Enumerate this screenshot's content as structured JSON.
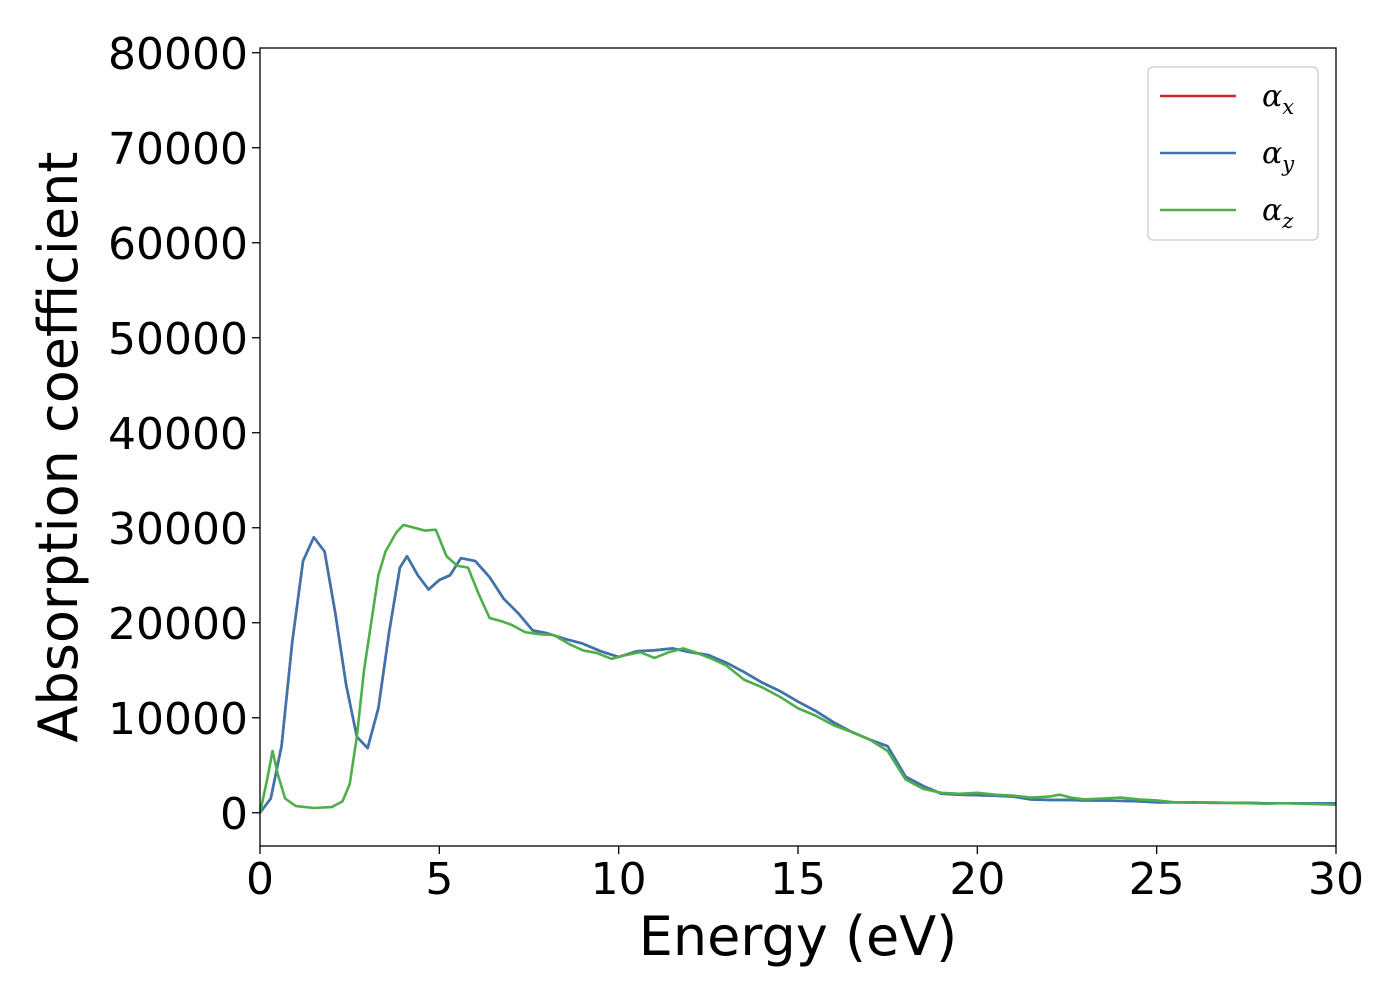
{
  "chart_data": {
    "type": "line",
    "title": "",
    "xlabel": "Energy (eV)",
    "ylabel": "Absorption coefficient",
    "xlim": [
      0,
      30
    ],
    "ylim": [
      -3500,
      80500
    ],
    "xticks": [
      0,
      5,
      10,
      15,
      20,
      25,
      30
    ],
    "yticks": [
      0,
      10000,
      20000,
      30000,
      40000,
      50000,
      60000,
      70000,
      80000
    ],
    "grid": false,
    "legend_position": "top-right",
    "legend": [
      {
        "symbol": "α",
        "sub": "x",
        "color": "#d62728"
      },
      {
        "symbol": "α",
        "sub": "y",
        "color": "#3b75af"
      },
      {
        "symbol": "α",
        "sub": "z",
        "color": "#4daf4a"
      }
    ],
    "series": [
      {
        "name": "αx",
        "color": "#d62728",
        "x": [
          0,
          0.3,
          0.6,
          0.9,
          1.2,
          1.5,
          1.8,
          2.1,
          2.4,
          2.7,
          3.0,
          3.3,
          3.6,
          3.9,
          4.1,
          4.4,
          4.7,
          5.0,
          5.3,
          5.6,
          6.0,
          6.4,
          6.8,
          7.2,
          7.6,
          8.0,
          8.5,
          9.0,
          9.5,
          10.0,
          10.5,
          11.0,
          11.5,
          12.0,
          12.5,
          13.0,
          13.5,
          14.0,
          14.5,
          15.0,
          15.5,
          16.0,
          16.5,
          17.0,
          17.5,
          18.0,
          18.5,
          19.0,
          19.5,
          20.0,
          20.5,
          21.0,
          21.5,
          22.0,
          22.5,
          23.0,
          23.5,
          24.0,
          24.5,
          25.0,
          25.5,
          26.0,
          26.5,
          27.0,
          27.5,
          28.0,
          28.5,
          29.0,
          29.5,
          30.0
        ],
        "y": [
          0,
          1500,
          7000,
          18000,
          26500,
          29000,
          27500,
          21000,
          13500,
          8000,
          6800,
          11000,
          19000,
          25800,
          27000,
          25000,
          23500,
          24500,
          25000,
          26800,
          26500,
          24800,
          22500,
          21000,
          19200,
          18900,
          18300,
          17800,
          17000,
          16400,
          17000,
          17100,
          17300,
          16900,
          16600,
          15800,
          14800,
          13700,
          12800,
          11700,
          10700,
          9500,
          8500,
          7700,
          7000,
          3800,
          2800,
          2000,
          1900,
          1850,
          1800,
          1700,
          1400,
          1350,
          1350,
          1300,
          1300,
          1250,
          1200,
          1100,
          1100,
          1100,
          1050,
          1050,
          1050,
          1000,
          1000,
          1000,
          1000,
          1000
        ]
      },
      {
        "name": "αy",
        "color": "#3b75af",
        "x": [
          0,
          0.3,
          0.6,
          0.9,
          1.2,
          1.5,
          1.8,
          2.1,
          2.4,
          2.7,
          3.0,
          3.3,
          3.6,
          3.9,
          4.1,
          4.4,
          4.7,
          5.0,
          5.3,
          5.6,
          6.0,
          6.4,
          6.8,
          7.2,
          7.6,
          8.0,
          8.5,
          9.0,
          9.5,
          10.0,
          10.5,
          11.0,
          11.5,
          12.0,
          12.5,
          13.0,
          13.5,
          14.0,
          14.5,
          15.0,
          15.5,
          16.0,
          16.5,
          17.0,
          17.5,
          18.0,
          18.5,
          19.0,
          19.5,
          20.0,
          20.5,
          21.0,
          21.5,
          22.0,
          22.5,
          23.0,
          23.5,
          24.0,
          24.5,
          25.0,
          25.5,
          26.0,
          26.5,
          27.0,
          27.5,
          28.0,
          28.5,
          29.0,
          29.5,
          30.0
        ],
        "y": [
          0,
          1500,
          7000,
          18000,
          26500,
          29000,
          27500,
          21000,
          13500,
          8000,
          6800,
          11000,
          19000,
          25800,
          27000,
          25000,
          23500,
          24500,
          25000,
          26800,
          26500,
          24800,
          22500,
          21000,
          19200,
          18900,
          18300,
          17800,
          17000,
          16400,
          17000,
          17100,
          17300,
          16900,
          16600,
          15800,
          14800,
          13700,
          12800,
          11700,
          10700,
          9500,
          8500,
          7700,
          7000,
          3800,
          2800,
          2000,
          1900,
          1850,
          1800,
          1700,
          1400,
          1350,
          1350,
          1300,
          1300,
          1250,
          1200,
          1100,
          1100,
          1100,
          1050,
          1050,
          1050,
          1000,
          1000,
          1000,
          1000,
          1000
        ]
      },
      {
        "name": "αz",
        "color": "#4daf4a",
        "x": [
          0,
          0.2,
          0.35,
          0.5,
          0.7,
          1.0,
          1.5,
          2.0,
          2.3,
          2.5,
          2.7,
          2.9,
          3.1,
          3.3,
          3.5,
          3.8,
          4.0,
          4.3,
          4.6,
          4.9,
          5.2,
          5.5,
          5.8,
          6.1,
          6.4,
          6.7,
          7.0,
          7.4,
          7.8,
          8.2,
          8.6,
          9.0,
          9.4,
          9.8,
          10.2,
          10.6,
          11.0,
          11.4,
          11.8,
          12.2,
          12.6,
          13.0,
          13.5,
          14.0,
          14.5,
          15.0,
          15.5,
          16.0,
          16.5,
          17.0,
          17.5,
          18.0,
          18.5,
          19.0,
          19.5,
          20.0,
          20.5,
          21.0,
          21.5,
          22.0,
          22.3,
          22.6,
          23.0,
          23.5,
          24.0,
          24.5,
          25.0,
          25.5,
          26.0,
          26.5,
          27.0,
          27.5,
          28.0,
          28.5,
          29.0,
          29.5,
          30.0
        ],
        "y": [
          0,
          3500,
          6500,
          4000,
          1500,
          700,
          500,
          600,
          1200,
          3000,
          8000,
          15000,
          20000,
          25000,
          27500,
          29500,
          30300,
          30000,
          29700,
          29800,
          27000,
          26000,
          25800,
          23000,
          20500,
          20200,
          19800,
          19000,
          18800,
          18700,
          17800,
          17100,
          16800,
          16200,
          16600,
          16900,
          16300,
          16900,
          17300,
          16800,
          16200,
          15500,
          14000,
          13200,
          12200,
          11000,
          10200,
          9200,
          8500,
          7700,
          6500,
          3500,
          2500,
          2100,
          2000,
          2100,
          1900,
          1800,
          1600,
          1700,
          1900,
          1600,
          1400,
          1500,
          1600,
          1400,
          1300,
          1100,
          1050,
          1100,
          1050,
          1000,
          950,
          1000,
          950,
          900,
          850
        ]
      }
    ]
  }
}
